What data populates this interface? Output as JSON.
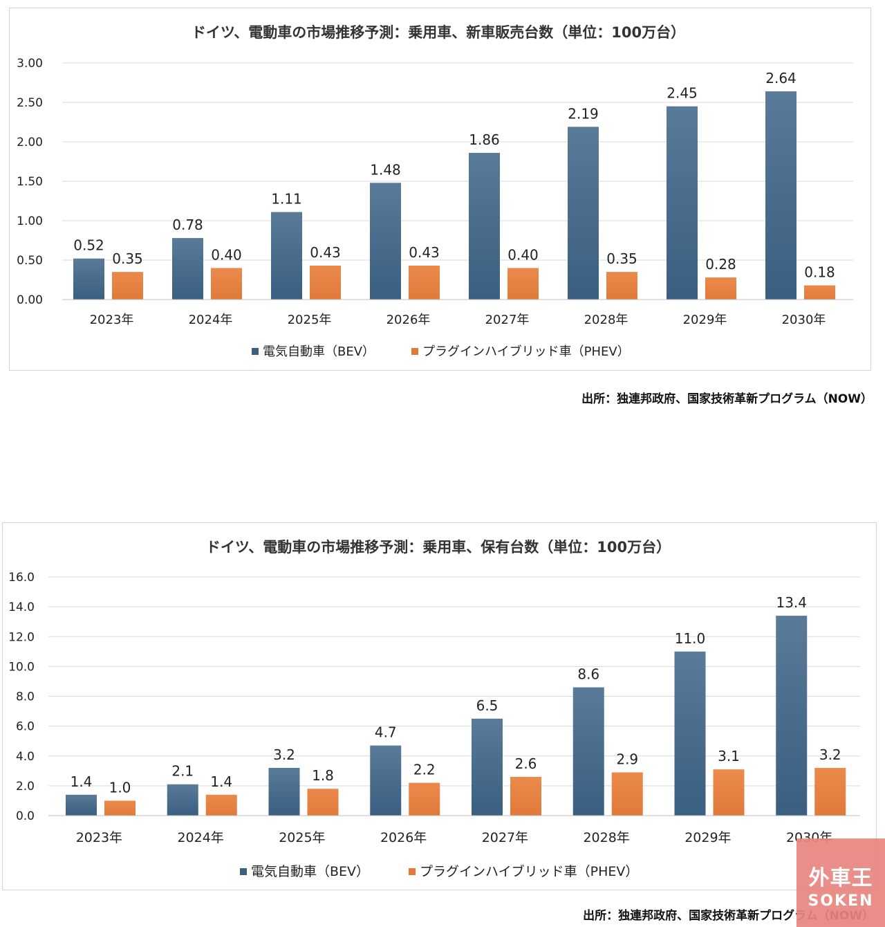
{
  "chart_data": [
    {
      "type": "bar",
      "title": "ドイツ、電動車の市場推移予測：乗用車、新車販売台数（単位：100万台）",
      "categories": [
        "2023年",
        "2024年",
        "2025年",
        "2026年",
        "2027年",
        "2028年",
        "2029年",
        "2030年"
      ],
      "series": [
        {
          "name": "電気自動車（BEV）",
          "values": [
            0.52,
            0.78,
            1.11,
            1.48,
            1.86,
            2.19,
            2.45,
            2.64
          ],
          "labels": [
            "0.52",
            "0.78",
            "1.11",
            "1.48",
            "1.86",
            "2.19",
            "2.45",
            "2.64"
          ],
          "color": "#3a5f80"
        },
        {
          "name": "プラグインハイブリッド車（PHEV）",
          "values": [
            0.35,
            0.4,
            0.43,
            0.43,
            0.4,
            0.35,
            0.28,
            0.18
          ],
          "labels": [
            "0.35",
            "0.40",
            "0.43",
            "0.43",
            "0.40",
            "0.35",
            "0.28",
            "0.18"
          ],
          "color": "#e07a3a"
        }
      ],
      "ylim": [
        0,
        3.0
      ],
      "yticks": [
        "0.00",
        "0.50",
        "1.00",
        "1.50",
        "2.00",
        "2.50",
        "3.00"
      ],
      "ytick_values": [
        0,
        0.5,
        1.0,
        1.5,
        2.0,
        2.5,
        3.0
      ],
      "grid": true,
      "legend_position": "bottom",
      "xlabel": "",
      "ylabel": ""
    },
    {
      "type": "bar",
      "title": "ドイツ、電動車の市場推移予測：乗用車、保有台数（単位：100万台）",
      "categories": [
        "2023年",
        "2024年",
        "2025年",
        "2026年",
        "2027年",
        "2028年",
        "2029年",
        "2030年"
      ],
      "series": [
        {
          "name": "電気自動車（BEV）",
          "values": [
            1.4,
            2.1,
            3.2,
            4.7,
            6.5,
            8.6,
            11.0,
            13.4
          ],
          "labels": [
            "1.4",
            "2.1",
            "3.2",
            "4.7",
            "6.5",
            "8.6",
            "11.0",
            "13.4"
          ],
          "color": "#3a5f80"
        },
        {
          "name": "プラグインハイブリッド車（PHEV）",
          "values": [
            1.0,
            1.4,
            1.8,
            2.2,
            2.6,
            2.9,
            3.1,
            3.2
          ],
          "labels": [
            "1.0",
            "1.4",
            "1.8",
            "2.2",
            "2.6",
            "2.9",
            "3.1",
            "3.2"
          ],
          "color": "#e07a3a"
        }
      ],
      "ylim": [
        0,
        16.0
      ],
      "yticks": [
        "0.0",
        "2.0",
        "4.0",
        "6.0",
        "8.0",
        "10.0",
        "12.0",
        "14.0",
        "16.0"
      ],
      "ytick_values": [
        0,
        2,
        4,
        6,
        8,
        10,
        12,
        14,
        16
      ],
      "grid": true,
      "legend_position": "bottom",
      "xlabel": "",
      "ylabel": ""
    }
  ],
  "sources": {
    "chart1": "出所：独連邦政府、国家技術革新プログラム（NOW）",
    "chart2": "出所：独連邦政府、国家技術革新プログラム（NOW）"
  },
  "watermark": {
    "top": "外車王",
    "bottom": "SOKEN"
  }
}
